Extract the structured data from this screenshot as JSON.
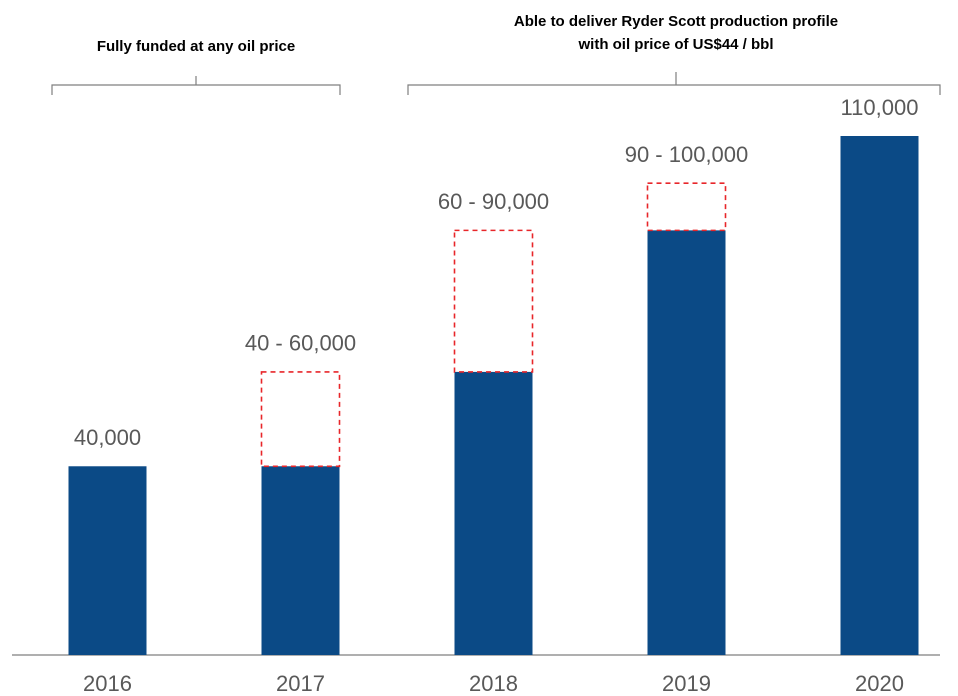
{
  "chart_data": {
    "type": "range-bar",
    "annotations": [
      {
        "lines": [
          "Fully funded at any oil price"
        ]
      },
      {
        "lines": [
          "Able to deliver Ryder Scott production profile",
          "with oil price of US$44 / bbl"
        ]
      }
    ],
    "categories": [
      "2016",
      "2017",
      "2018",
      "2019",
      "2020"
    ],
    "values": [
      40000,
      40000,
      60000,
      90000,
      110000
    ],
    "range_top": [
      null,
      60000,
      90000,
      100000,
      null
    ],
    "value_labels": [
      "40,000",
      "40 - 60,000",
      "60 - 90,000",
      "90 - 100,000",
      "110,000"
    ],
    "color": "#0b4a86",
    "range_color": "#e8262a",
    "ylim": [
      0,
      110000
    ]
  }
}
